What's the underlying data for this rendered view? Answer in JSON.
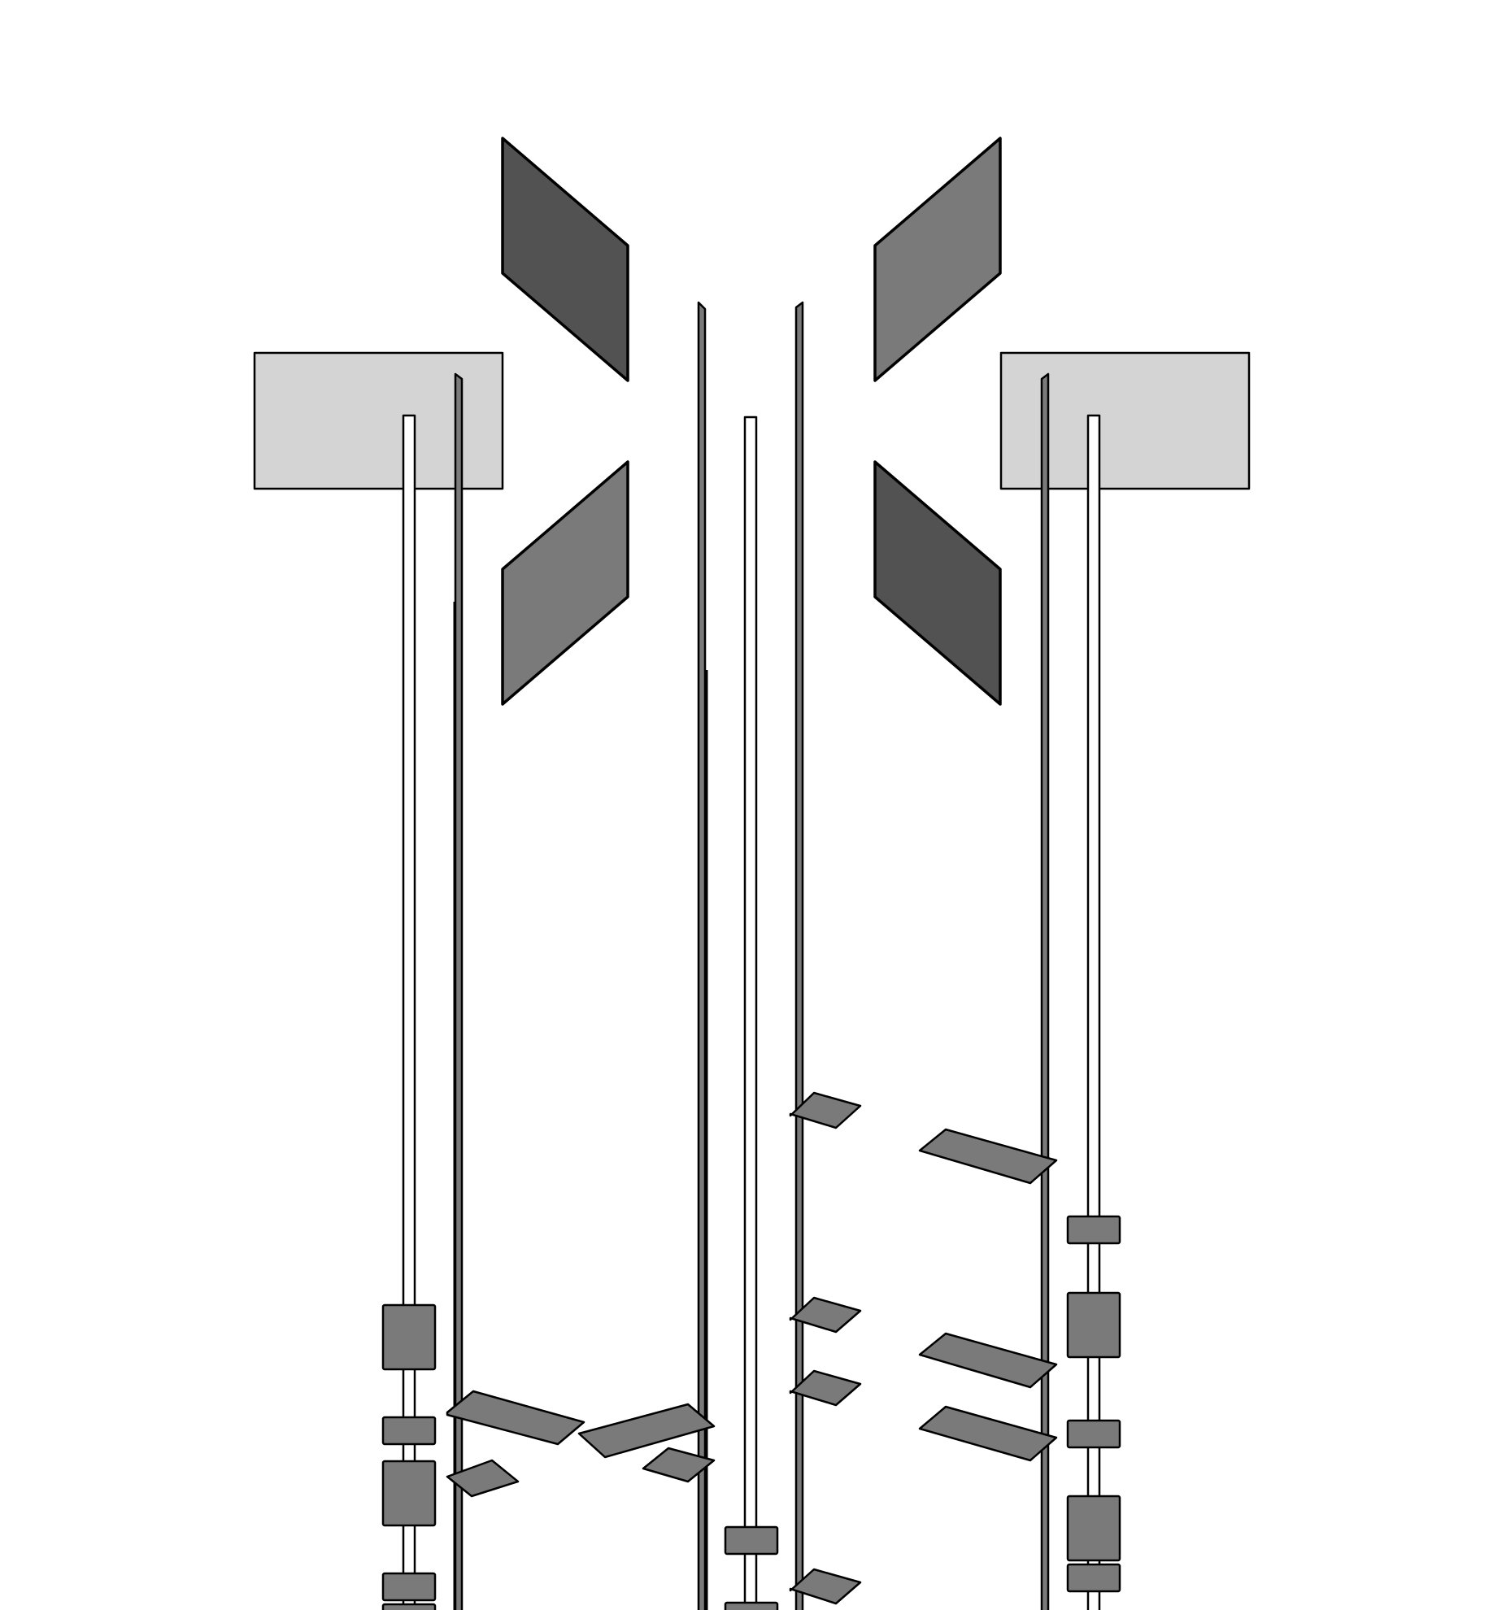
{
  "diagram": {
    "colors": {
      "background": "#ffffff",
      "outline": "#000000",
      "dark_fill": "#525252",
      "mid_fill": "#7a7a7a",
      "light_fill": "#d4d4d4",
      "pole_fill": "#ffffff",
      "rod_fill": "#7a7a7a"
    }
  }
}
